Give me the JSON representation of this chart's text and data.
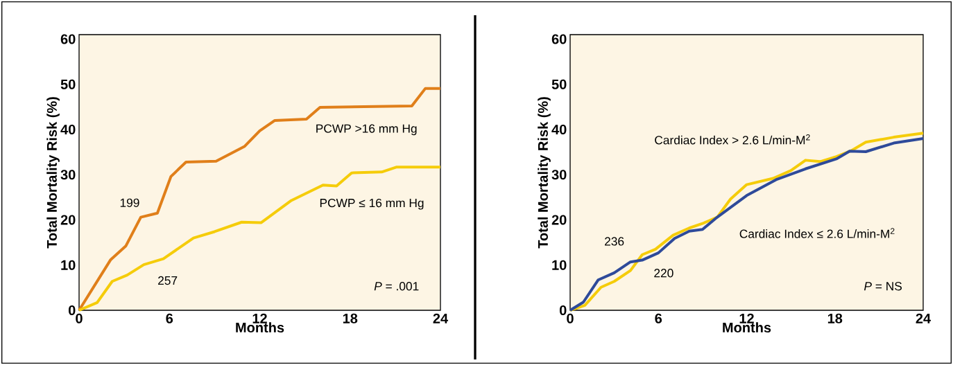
{
  "chart_data": [
    {
      "type": "line",
      "xlabel": "Months",
      "ylabel": "Total Mortality Risk (%)",
      "xlim": [
        0,
        24
      ],
      "ylim": [
        0,
        61
      ],
      "xticks": [
        0,
        6,
        12,
        18,
        24
      ],
      "yticks": [
        0,
        10,
        20,
        30,
        40,
        50,
        60
      ],
      "series": [
        {
          "color": "#e07f1a",
          "x": [
            0,
            2.1,
            3.1,
            4.1,
            5.2,
            6.1,
            7.1,
            9.1,
            11,
            12,
            13,
            15.1,
            16,
            22.1,
            23,
            24
          ],
          "values": [
            0,
            11.2,
            14.2,
            20.6,
            21.5,
            29.6,
            32.8,
            33,
            36.3,
            39.7,
            42,
            42.3,
            44.9,
            45.2,
            49.1,
            49.1
          ]
        },
        {
          "color": "#f5cc0a",
          "x": [
            0,
            1.2,
            2.2,
            3.2,
            4.3,
            5.6,
            7.6,
            9,
            10.8,
            12.1,
            14.1,
            16.2,
            17.1,
            18.1,
            20.1,
            21.1,
            24
          ],
          "values": [
            0,
            1.7,
            6.4,
            7.8,
            10.1,
            11.4,
            16,
            17.4,
            19.5,
            19.4,
            24.3,
            27.7,
            27.5,
            30.4,
            30.6,
            31.7,
            31.7
          ]
        }
      ],
      "annotations": [
        "PCWP >16 mm Hg",
        "PCWP ≤ 16 mm Hg",
        "199",
        "257",
        "*P* = .001"
      ]
    },
    {
      "type": "line",
      "xlabel": "Months",
      "ylabel": "Total Mortality Risk (%)",
      "xlim": [
        0,
        24
      ],
      "ylim": [
        0,
        61
      ],
      "xticks": [
        0,
        6,
        12,
        18,
        24
      ],
      "yticks": [
        0,
        10,
        20,
        30,
        40,
        50,
        60
      ],
      "series": [
        {
          "color": "#f5cc0a",
          "x": [
            0,
            1,
            2.1,
            3,
            4.1,
            4.9,
            5.8,
            7,
            8.1,
            9,
            10,
            10.9,
            12,
            13.8,
            15,
            16,
            17,
            18.1,
            19.1,
            20.1,
            22,
            24
          ],
          "values": [
            0,
            1.1,
            5.1,
            6.4,
            8.8,
            12.3,
            13.5,
            16.6,
            18.2,
            19.2,
            20.6,
            24.6,
            27.8,
            29.2,
            30.9,
            33.2,
            32.9,
            34,
            35.3,
            37.2,
            38.3,
            39.2
          ]
        },
        {
          "color": "#2e4a9a",
          "x": [
            0,
            0.9,
            1.9,
            3,
            4.1,
            4.9,
            6,
            7.1,
            8.1,
            9,
            10,
            12,
            14,
            16,
            18.1,
            19,
            20.1,
            22,
            24
          ],
          "values": [
            0,
            1.8,
            6.7,
            8.3,
            10.7,
            11.1,
            12.7,
            15.9,
            17.5,
            17.9,
            20.6,
            25.4,
            28.9,
            31.3,
            33.5,
            35.2,
            35.1,
            37,
            38
          ]
        }
      ],
      "annotations": [
        "Cardiac Index > 2.6 L/min-M$^{2}$",
        "Cardiac Index ≤ 2.6 L/min-M$^{2}$",
        "236",
        "220",
        "*P* = NS"
      ]
    }
  ]
}
